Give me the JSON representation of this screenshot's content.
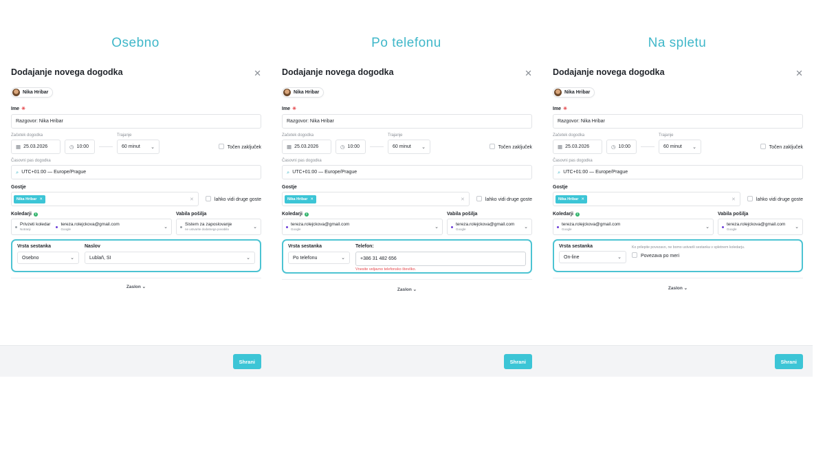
{
  "columns": [
    {
      "title": "Osebno",
      "dialog_title": "Dodajanje novega dogodka",
      "user": "Nika Hribar",
      "name_label": "Ime",
      "name_value": "Razgovor: Nika Hribar",
      "start_label": "Začetek dogodka",
      "date": "25.03.2026",
      "time": "10:00",
      "duration_label": "Trajanje",
      "duration": "60 minut",
      "exact_end": "Točen zaključek",
      "tz_label": "Časovni pas dogodka",
      "tz": "UTC+01:00 — Europe/Prague",
      "guests_label": "Gostje",
      "guest_tag": "Nika Hribar",
      "guests_see": "lahko vidi druge goste",
      "calendars_label": "Koledarji",
      "calendars": [
        {
          "name": "Privzeti koledar",
          "source": "Notranji",
          "color": "#9aa0a6"
        },
        {
          "name": "tereza.rolejckova@gmail.com",
          "source": "Google",
          "color": "#6d3fd8"
        }
      ],
      "invites_label": "Vabila pošilja",
      "invite_name": "Sistem za zaposlovanje",
      "invite_source": "ne ustvarite dodatnega povabila",
      "invite_color": "#9aa0a6",
      "meeting_type_label": "Vrsta sestanka",
      "meeting_type": "Osebno",
      "field2_label": "Naslov",
      "field2_value": "Lublaň, SI",
      "screen": "Zaslon",
      "save": "Shrani"
    },
    {
      "title": "Po telefonu",
      "dialog_title": "Dodajanje novega dogodka",
      "user": "Nika Hribar",
      "name_label": "Ime",
      "name_value": "Razgovor: Nika Hribar",
      "start_label": "Začetek dogodka",
      "date": "25.03.2026",
      "time": "10:00",
      "duration_label": "Trajanje",
      "duration": "60 minut",
      "exact_end": "Točen zaključek",
      "tz_label": "Časovni pas dogodka",
      "tz": "UTC+01:00 — Europe/Prague",
      "guests_label": "Gostje",
      "guest_tag": "Nika Hribar",
      "guests_see": "lahko vidi druge goste",
      "calendars_label": "Koledarji",
      "calendars": [
        {
          "name": "tereza.rolejckova@gmail.com",
          "source": "Google",
          "color": "#6d3fd8"
        }
      ],
      "invites_label": "Vabila pošilja",
      "invite_name": "tereza.rolejckova@gmail.com",
      "invite_source": "Google",
      "invite_color": "#6d3fd8",
      "meeting_type_label": "Vrsta sestanka",
      "meeting_type": "Po telefonu",
      "field2_label": "Telefon:",
      "field2_value": "+386 31 482 656",
      "phone_error": "Vnesite veljavno telefonsko številko.",
      "screen": "Zaslon",
      "save": "Shrani"
    },
    {
      "title": "Na spletu",
      "dialog_title": "Dodajanje novega dogodka",
      "user": "Nika Hribar",
      "name_label": "Ime",
      "name_value": "Razgovor: Nika Hribar",
      "start_label": "Začetek dogodka",
      "date": "25.03.2026",
      "time": "10:00",
      "duration_label": "Trajanje",
      "duration": "60 minut",
      "exact_end": "Točen zaključek",
      "tz_label": "Časovni pas dogodka",
      "tz": "UTC+01:00 — Europe/Prague",
      "guests_label": "Gostje",
      "guest_tag": "Nika Hribar",
      "guests_see": "lahko vidi druge goste",
      "calendars_label": "Koledarji",
      "calendars": [
        {
          "name": "tereza.rolejckova@gmail.com",
          "source": "Google",
          "color": "#6d3fd8"
        }
      ],
      "invites_label": "Vabila pošilja",
      "invite_name": "tereza.rolejckova@gmail.com",
      "invite_source": "Google",
      "invite_color": "#6d3fd8",
      "meeting_type_label": "Vrsta sestanka",
      "meeting_type": "On-line",
      "online_note": "Ko prilepite povezavo, ne bomo ustvarili sestanka v spletnem koledarju.",
      "custom_link": "Povezava po meri",
      "screen": "Zaslon",
      "save": "Shrani"
    }
  ]
}
